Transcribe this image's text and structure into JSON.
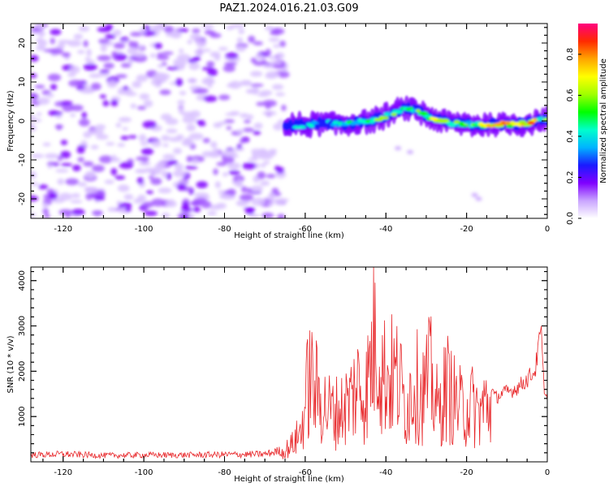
{
  "title": "PAZ1.2024.016.21.03.G09",
  "chart_data": [
    {
      "type": "heatmap",
      "xlabel": "Height of straight line (km)",
      "ylabel": "Frequency (Hz)",
      "xlim": [
        -128,
        0
      ],
      "ylim": [
        -25,
        25
      ],
      "x_ticks": [
        -120,
        -100,
        -80,
        -60,
        -40,
        -20,
        0
      ],
      "y_ticks": [
        -20,
        -10,
        0,
        10,
        20
      ],
      "colorbar": {
        "label": "Normalized spectral amplitude",
        "range": [
          0,
          0.95
        ],
        "ticks": [
          0.0,
          0.2,
          0.4,
          0.6,
          0.8
        ],
        "colors": [
          "#ffffff",
          "#c9a4ff",
          "#7f00ff",
          "#1a1aff",
          "#00b4ff",
          "#00ffcc",
          "#00ff00",
          "#a0ff00",
          "#ffff00",
          "#ffa500",
          "#ff2a00",
          "#ff007f"
        ]
      },
      "ridge": {
        "x": [
          -65,
          -62,
          -58,
          -54,
          -50,
          -46,
          -42,
          -38,
          -35,
          -32,
          -28,
          -24,
          -20,
          -16,
          -12,
          -8,
          -4,
          -1
        ],
        "freq_hz": [
          -1.5,
          -1.2,
          -0.8,
          -0.6,
          -0.8,
          -0.2,
          0.5,
          2.0,
          3.5,
          2.5,
          0.5,
          -0.6,
          -0.8,
          -1.0,
          -0.8,
          -0.8,
          -0.5,
          0.5
        ],
        "peak_amplitude": [
          0.3,
          0.4,
          0.45,
          0.4,
          0.5,
          0.45,
          0.55,
          0.6,
          0.45,
          0.6,
          0.65,
          0.55,
          0.6,
          0.65,
          0.8,
          0.7,
          0.85,
          0.6
        ]
      },
      "noise_region_x": [
        -128,
        -65
      ]
    },
    {
      "type": "line",
      "xlabel": "Height of straight line (km)",
      "ylabel": "SNR (10 * v/v)",
      "xlim": [
        -128,
        0
      ],
      "ylim": [
        0,
        4300
      ],
      "x_ticks": [
        -120,
        -100,
        -80,
        -60,
        -40,
        -20,
        0
      ],
      "y_ticks": [
        1000,
        2000,
        3000,
        4000
      ],
      "series": [
        {
          "color": "#e8282b",
          "x": [
            -128,
            -120,
            -110,
            -100,
            -90,
            -80,
            -70,
            -66,
            -63,
            -61,
            -59,
            -57,
            -55,
            -53,
            -51,
            -49,
            -47,
            -45,
            -43,
            -42,
            -41,
            -39,
            -37,
            -35,
            -33,
            -31,
            -29,
            -27,
            -25,
            -23,
            -21,
            -19,
            -17,
            -15,
            -13,
            -11,
            -9,
            -7,
            -5,
            -3,
            -1.5,
            -1,
            0
          ],
          "y": [
            150,
            170,
            140,
            150,
            150,
            160,
            170,
            250,
            600,
            1000,
            2800,
            2200,
            1800,
            1600,
            1700,
            2000,
            2500,
            2200,
            3800,
            4200,
            2900,
            2800,
            2700,
            1800,
            2600,
            2200,
            2800,
            1600,
            2500,
            2000,
            1700,
            1900,
            1600,
            1900,
            1400,
            1500,
            1550,
            1650,
            1800,
            2000,
            2900,
            1800,
            1300
          ]
        }
      ]
    }
  ]
}
